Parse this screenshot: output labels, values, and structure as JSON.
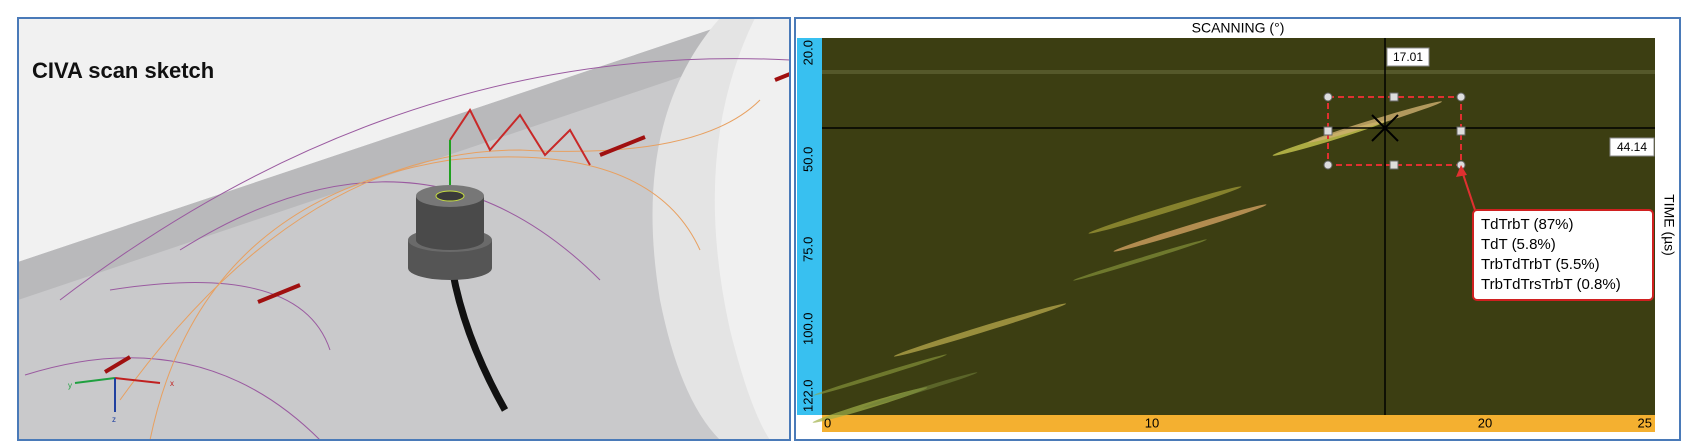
{
  "left_panel": {
    "title": "CIVA scan sketch",
    "axis_labels": [
      "x",
      "y",
      "z"
    ]
  },
  "right_panel": {
    "x_axis_label": "SCANNING (°)",
    "y_axis_label": "TIME (µs)",
    "x_ticks": [
      "0",
      "10",
      "20",
      "25"
    ],
    "y_ticks": [
      "20.0",
      "50.0",
      "75.0",
      "100.0",
      "122.0"
    ],
    "cursor_x": "17.01",
    "cursor_y": "44.14",
    "legend": [
      "TdTrbT (87%)",
      "TdT (5.8%)",
      "TrbTdTrbT (5.5%)",
      "TrbTdTrsTrbT (0.8%)"
    ]
  }
}
